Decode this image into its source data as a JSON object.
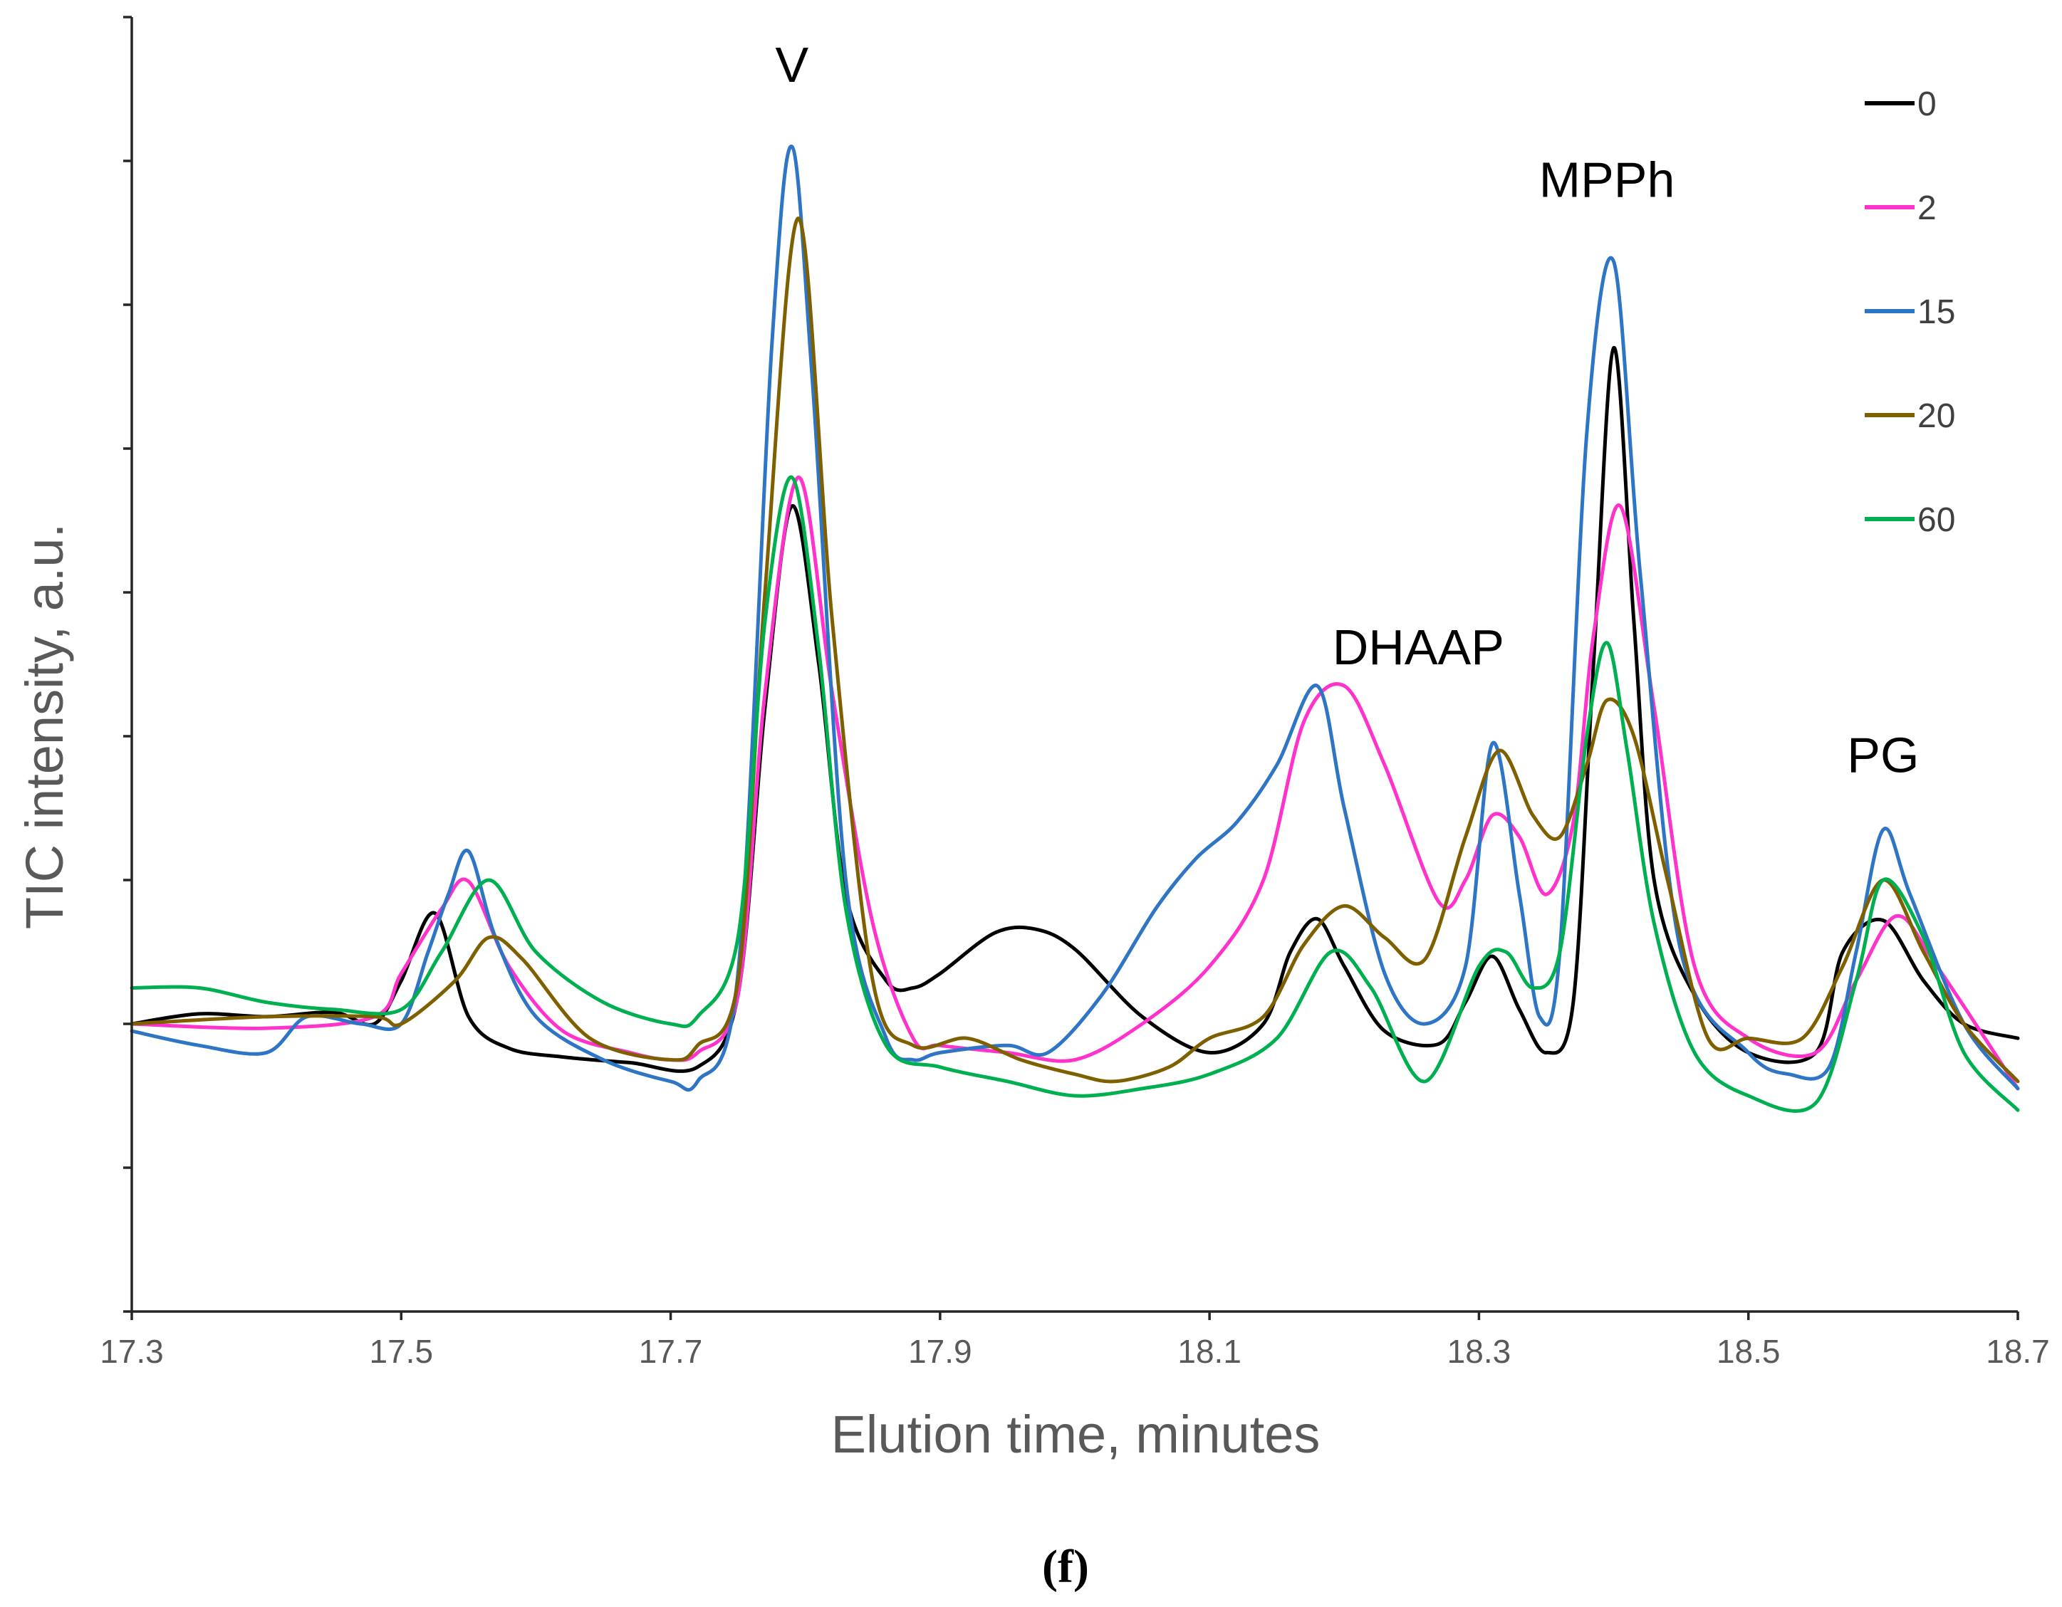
{
  "chart_data": {
    "type": "line",
    "title": "",
    "xlabel": "Elution time, minutes",
    "ylabel": "TIC intensity, a.u.",
    "xlim": [
      17.3,
      18.7
    ],
    "ylim": [
      -2,
      7
    ],
    "x_ticks": [
      "17.3",
      "17.5",
      "17.7",
      "17.9",
      "18.1",
      "18.3",
      "18.5",
      "18.7"
    ],
    "y_tick_count": 10,
    "y_tick_labels_shown": false,
    "grid": false,
    "legend": "top-right",
    "annotations": [
      {
        "text": "V",
        "x": 17.79,
        "y": 6.55
      },
      {
        "text": "MPPh",
        "x": 18.395,
        "y": 5.75
      },
      {
        "text": "DHAAP",
        "x": 18.255,
        "y": 2.5
      },
      {
        "text": "PG",
        "x": 18.6,
        "y": 1.75
      }
    ],
    "panel_label": "(f)",
    "series": [
      {
        "name": "0",
        "color": "#000000",
        "x": [
          17.3,
          17.35,
          17.4,
          17.45,
          17.48,
          17.5,
          17.525,
          17.55,
          17.58,
          17.62,
          17.67,
          17.72,
          17.75,
          17.77,
          17.79,
          17.81,
          17.83,
          17.86,
          17.88,
          17.9,
          17.94,
          17.97,
          18.0,
          18.05,
          18.1,
          18.14,
          18.16,
          18.18,
          18.2,
          18.23,
          18.27,
          18.29,
          18.31,
          18.33,
          18.35,
          18.37,
          18.385,
          18.4,
          18.415,
          18.43,
          18.46,
          18.5,
          18.55,
          18.57,
          18.6,
          18.63,
          18.66,
          18.7
        ],
        "y": [
          0.0,
          0.07,
          0.05,
          0.08,
          0.0,
          0.3,
          0.77,
          0.05,
          -0.17,
          -0.23,
          -0.27,
          -0.3,
          0.2,
          2.2,
          3.6,
          2.5,
          0.9,
          0.3,
          0.25,
          0.35,
          0.63,
          0.66,
          0.52,
          0.05,
          -0.2,
          0.0,
          0.5,
          0.73,
          0.4,
          -0.05,
          -0.14,
          0.15,
          0.47,
          0.1,
          -0.2,
          0.15,
          2.5,
          4.7,
          2.8,
          1.0,
          0.2,
          -0.2,
          -0.2,
          0.5,
          0.72,
          0.3,
          0.0,
          -0.1
        ]
      },
      {
        "name": "2",
        "color": "#FF33CC",
        "x": [
          17.3,
          17.4,
          17.48,
          17.5,
          17.53,
          17.55,
          17.58,
          17.62,
          17.67,
          17.7,
          17.72,
          17.75,
          17.77,
          17.795,
          17.82,
          17.85,
          17.88,
          17.9,
          17.95,
          18.0,
          18.05,
          18.1,
          18.14,
          18.17,
          18.2,
          18.23,
          18.27,
          18.29,
          18.31,
          18.33,
          18.35,
          18.37,
          18.385,
          18.405,
          18.43,
          18.46,
          18.5,
          18.55,
          18.58,
          18.61,
          18.64,
          18.7
        ],
        "y": [
          0.0,
          -0.03,
          0.05,
          0.35,
          0.8,
          0.99,
          0.4,
          -0.05,
          -0.2,
          -0.25,
          -0.2,
          0.2,
          2.3,
          3.8,
          2.3,
          0.7,
          -0.1,
          -0.15,
          -0.2,
          -0.25,
          0.0,
          0.4,
          1.0,
          2.1,
          2.35,
          1.8,
          0.85,
          1.0,
          1.45,
          1.3,
          0.9,
          1.4,
          2.7,
          3.6,
          2.2,
          0.4,
          -0.1,
          -0.2,
          0.3,
          0.75,
          0.4,
          -0.45
        ]
      },
      {
        "name": "15",
        "color": "#2E75C6",
        "x": [
          17.3,
          17.35,
          17.4,
          17.43,
          17.47,
          17.5,
          17.52,
          17.535,
          17.55,
          17.57,
          17.6,
          17.65,
          17.7,
          17.72,
          17.75,
          17.775,
          17.79,
          17.805,
          17.83,
          17.86,
          17.88,
          17.9,
          17.95,
          17.98,
          18.02,
          18.06,
          18.09,
          18.12,
          18.15,
          18.18,
          18.2,
          18.23,
          18.26,
          18.29,
          18.31,
          18.33,
          18.345,
          18.36,
          18.38,
          18.4,
          18.42,
          18.45,
          18.5,
          18.53,
          18.56,
          18.58,
          18.6,
          18.62,
          18.66,
          18.7
        ],
        "y": [
          -0.05,
          -0.15,
          -0.2,
          0.05,
          0.0,
          0.0,
          0.5,
          0.9,
          1.2,
          0.6,
          0.05,
          -0.25,
          -0.4,
          -0.4,
          0.35,
          4.7,
          6.1,
          4.5,
          1.0,
          -0.1,
          -0.25,
          -0.2,
          -0.15,
          -0.2,
          0.2,
          0.8,
          1.15,
          1.4,
          1.8,
          2.35,
          1.5,
          0.35,
          0.0,
          0.4,
          1.95,
          0.9,
          0.05,
          0.5,
          4.1,
          5.3,
          3.1,
          0.5,
          -0.2,
          -0.35,
          -0.3,
          0.5,
          1.35,
          0.9,
          0.0,
          -0.45
        ]
      },
      {
        "name": "20",
        "color": "#7F6000",
        "x": [
          17.3,
          17.4,
          17.48,
          17.5,
          17.54,
          17.565,
          17.59,
          17.64,
          17.7,
          17.72,
          17.75,
          17.77,
          17.795,
          17.82,
          17.85,
          17.88,
          17.92,
          17.96,
          18.0,
          18.03,
          18.07,
          18.1,
          18.14,
          18.17,
          18.2,
          18.23,
          18.26,
          18.29,
          18.315,
          18.34,
          18.36,
          18.38,
          18.395,
          18.415,
          18.44,
          18.47,
          18.5,
          18.54,
          18.57,
          18.6,
          18.63,
          18.66,
          18.7
        ],
        "y": [
          0.0,
          0.05,
          0.05,
          0.0,
          0.3,
          0.6,
          0.45,
          -0.1,
          -0.25,
          -0.15,
          0.3,
          3.0,
          5.6,
          2.8,
          0.3,
          -0.15,
          -0.1,
          -0.25,
          -0.35,
          -0.4,
          -0.3,
          -0.1,
          0.05,
          0.55,
          0.82,
          0.6,
          0.45,
          1.3,
          1.9,
          1.45,
          1.3,
          1.8,
          2.25,
          2.0,
          1.0,
          -0.1,
          -0.1,
          -0.1,
          0.4,
          1.0,
          0.5,
          0.0,
          -0.4
        ]
      },
      {
        "name": "60",
        "color": "#00B050",
        "x": [
          17.3,
          17.35,
          17.4,
          17.45,
          17.5,
          17.53,
          17.565,
          17.6,
          17.65,
          17.7,
          17.72,
          17.75,
          17.77,
          17.79,
          17.81,
          17.83,
          17.86,
          17.9,
          17.95,
          18.0,
          18.05,
          18.1,
          18.15,
          18.19,
          18.22,
          18.26,
          18.3,
          18.32,
          18.34,
          18.36,
          18.38,
          18.395,
          18.41,
          18.43,
          18.46,
          18.5,
          18.55,
          18.58,
          18.6,
          18.63,
          18.66,
          18.7
        ],
        "y": [
          0.25,
          0.25,
          0.15,
          0.1,
          0.1,
          0.5,
          1.0,
          0.5,
          0.15,
          0.0,
          0.05,
          0.6,
          2.8,
          3.8,
          2.6,
          0.8,
          -0.15,
          -0.3,
          -0.4,
          -0.5,
          -0.45,
          -0.35,
          -0.1,
          0.5,
          0.25,
          -0.4,
          0.4,
          0.5,
          0.25,
          0.5,
          2.0,
          2.65,
          1.9,
          0.7,
          -0.2,
          -0.5,
          -0.55,
          0.3,
          1.0,
          0.6,
          -0.2,
          -0.6
        ]
      }
    ]
  }
}
